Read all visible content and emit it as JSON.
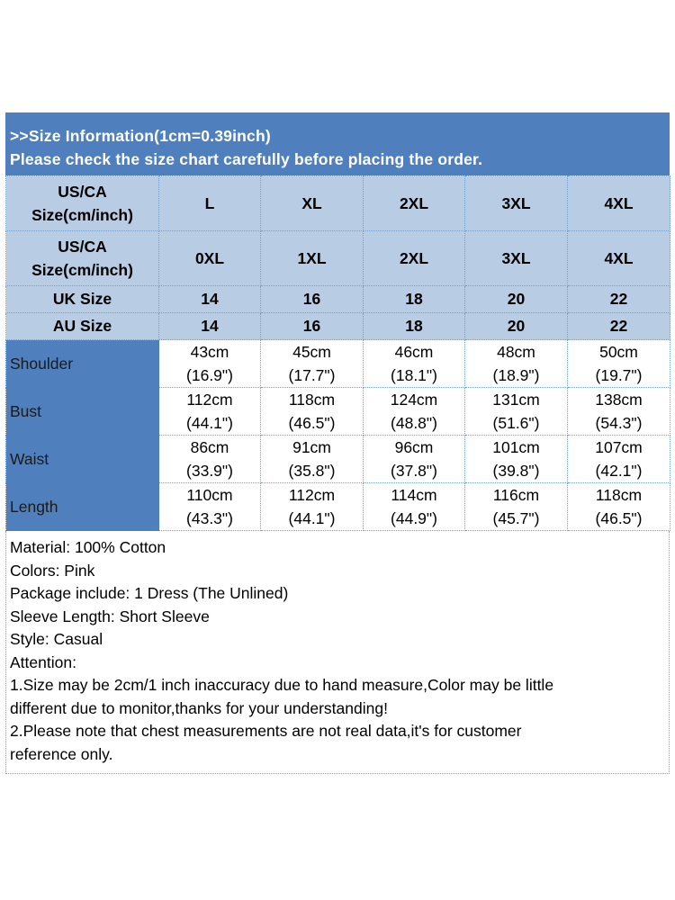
{
  "banner": {
    "line1": ">>Size Information(1cm=0.39inch)",
    "line2": "Please check the size chart carefully before placing the order."
  },
  "header_rows": [
    {
      "label_line1": "US/CA",
      "label_line2": "Size(cm/inch)",
      "values": [
        "L",
        "XL",
        "2XL",
        "3XL",
        "4XL"
      ]
    },
    {
      "label_line1": "US/CA",
      "label_line2": "Size(cm/inch)",
      "values": [
        "0XL",
        "1XL",
        "2XL",
        "3XL",
        "4XL"
      ]
    },
    {
      "label": "UK Size",
      "values": [
        "14",
        "16",
        "18",
        "20",
        "22"
      ]
    },
    {
      "label": "AU Size",
      "values": [
        "14",
        "16",
        "18",
        "20",
        "22"
      ]
    }
  ],
  "measurements": [
    {
      "label": "Shoulder",
      "cm": [
        "43cm",
        "45cm",
        "46cm",
        "48cm",
        "50cm"
      ],
      "inch": [
        "(16.9\")",
        "(17.7\")",
        "(18.1\")",
        "(18.9\")",
        "(19.7\")"
      ]
    },
    {
      "label": "Bust",
      "cm": [
        "112cm",
        "118cm",
        "124cm",
        "131cm",
        "138cm"
      ],
      "inch": [
        "(44.1\")",
        "(46.5\")",
        "(48.8\")",
        "(51.6\")",
        "(54.3\")"
      ]
    },
    {
      "label": "Waist",
      "cm": [
        "86cm",
        "91cm",
        "96cm",
        "101cm",
        "107cm"
      ],
      "inch": [
        "(33.9\")",
        "(35.8\")",
        "(37.8\")",
        "(39.8\")",
        "(42.1\")"
      ]
    },
    {
      "label": "Length",
      "cm": [
        "110cm",
        "112cm",
        "114cm",
        "116cm",
        "118cm"
      ],
      "inch": [
        "(43.3\")",
        "(44.1\")",
        "(44.9\")",
        "(45.7\")",
        "(46.5\")"
      ]
    }
  ],
  "notes": [
    "Material: 100% Cotton",
    "Colors: Pink",
    "Package include: 1 Dress (The Unlined)",
    "Sleeve Length: Short Sleeve",
    "Style: Casual",
    "Attention:",
    "1.Size may be 2cm/1 inch inaccuracy due to hand measure,Color may be little",
    "different due to monitor,thanks for your understanding!",
    "2.Please note that chest measurements are not real data,it's for customer",
    "reference only."
  ],
  "colors": {
    "header_blue": "#4f80bd",
    "header_light": "#b8cce4"
  }
}
